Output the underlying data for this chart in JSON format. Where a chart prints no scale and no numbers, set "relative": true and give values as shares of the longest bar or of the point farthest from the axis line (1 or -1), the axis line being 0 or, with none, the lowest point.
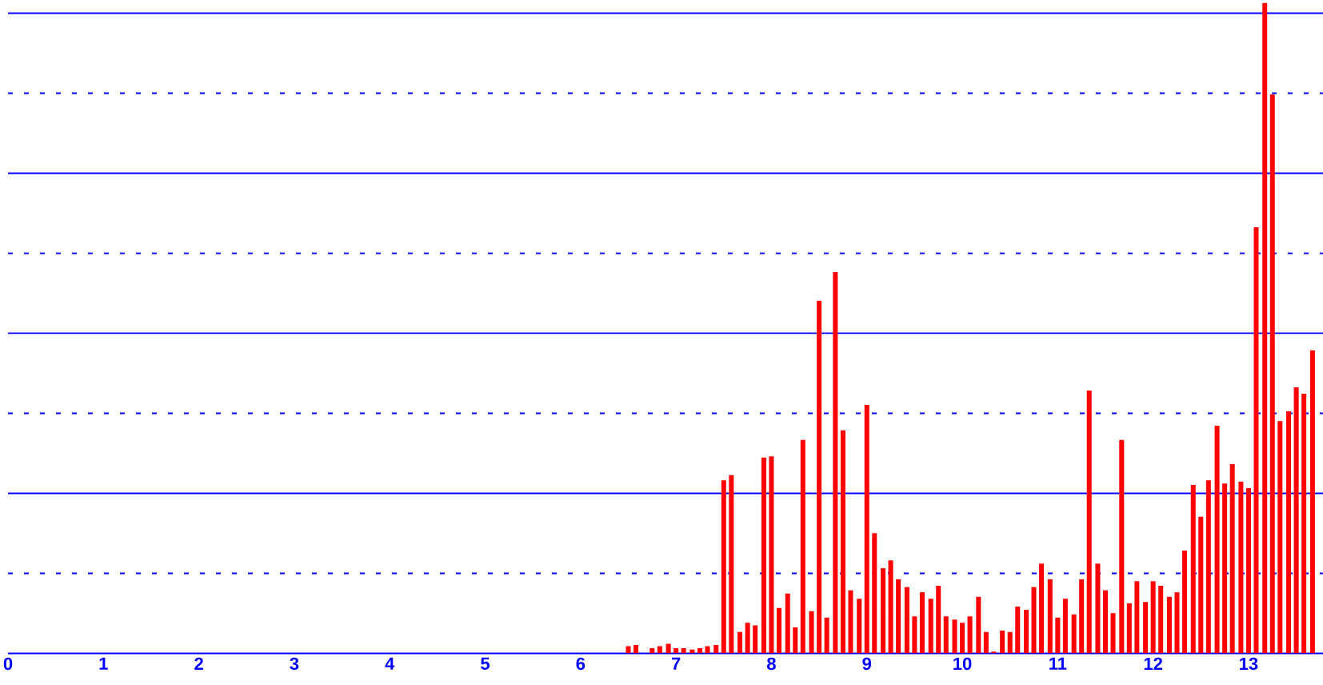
{
  "chart_data": {
    "type": "bar",
    "relative": true,
    "color": "#ff0000",
    "xlim": [
      0,
      13.78
    ],
    "xticks": [
      0,
      1,
      2,
      3,
      4,
      5,
      6,
      7,
      8,
      9,
      10,
      11,
      12,
      13
    ],
    "x": [
      6.5,
      6.58,
      6.75,
      6.83,
      6.92,
      7,
      7.08,
      7.17,
      7.25,
      7.33,
      7.42,
      7.5,
      7.58,
      7.67,
      7.75,
      7.83,
      7.92,
      8,
      8.08,
      8.17,
      8.25,
      8.33,
      8.42,
      8.5,
      8.58,
      8.67,
      8.75,
      8.83,
      8.92,
      9,
      9.08,
      9.17,
      9.25,
      9.33,
      9.42,
      9.5,
      9.58,
      9.67,
      9.75,
      9.83,
      9.92,
      10,
      10.08,
      10.17,
      10.25,
      10.33,
      10.42,
      10.5,
      10.58,
      10.67,
      10.75,
      10.83,
      10.92,
      11,
      11.08,
      11.17,
      11.25,
      11.33,
      11.42,
      11.5,
      11.58,
      11.67,
      11.75,
      11.83,
      11.92,
      12,
      12.08,
      12.17,
      12.25,
      12.33,
      12.42,
      12.5,
      12.58,
      12.67,
      12.75,
      12.83,
      12.92,
      13,
      13.08,
      13.17,
      13.25,
      13.33,
      13.42,
      13.5,
      13.58,
      13.67
    ],
    "values": [
      0.011,
      0.013,
      0.008,
      0.011,
      0.015,
      0.008,
      0.008,
      0.006,
      0.008,
      0.011,
      0.013,
      0.266,
      0.274,
      0.033,
      0.047,
      0.043,
      0.301,
      0.303,
      0.07,
      0.092,
      0.04,
      0.328,
      0.065,
      0.542,
      0.055,
      0.586,
      0.343,
      0.097,
      0.084,
      0.382,
      0.185,
      0.131,
      0.143,
      0.114,
      0.102,
      0.057,
      0.094,
      0.084,
      0.104,
      0.057,
      0.052,
      0.047,
      0.057,
      0.087,
      0.033,
      0.003,
      0.035,
      0.033,
      0.072,
      0.067,
      0.102,
      0.138,
      0.114,
      0.055,
      0.084,
      0.06,
      0.114,
      0.404,
      0.138,
      0.097,
      0.062,
      0.328,
      0.077,
      0.111,
      0.079,
      0.111,
      0.104,
      0.087,
      0.094,
      0.158,
      0.259,
      0.21,
      0.266,
      0.35,
      0.261,
      0.291,
      0.264,
      0.254,
      0.655,
      1,
      0.859,
      0.357,
      0.372,
      0.409,
      0.399,
      0.466
    ],
    "ref_lines": [
      {
        "axis": "y",
        "value": 0.123,
        "color": "#0000ff",
        "line_style": "dotted"
      },
      {
        "axis": "y",
        "value": 0.246,
        "color": "#0000ff",
        "line_style": "solid"
      },
      {
        "axis": "y",
        "value": 0.369,
        "color": "#0000ff",
        "line_style": "dotted"
      },
      {
        "axis": "y",
        "value": 0.492,
        "color": "#0000ff",
        "line_style": "solid"
      },
      {
        "axis": "y",
        "value": 0.615,
        "color": "#0000ff",
        "line_style": "dotted"
      },
      {
        "axis": "y",
        "value": 0.738,
        "color": "#0000ff",
        "line_style": "solid"
      },
      {
        "axis": "y",
        "value": 0.861,
        "color": "#0000ff",
        "line_style": "dotted"
      },
      {
        "axis": "y",
        "value": 0.984,
        "color": "#0000ff",
        "line_style": "solid"
      }
    ]
  }
}
